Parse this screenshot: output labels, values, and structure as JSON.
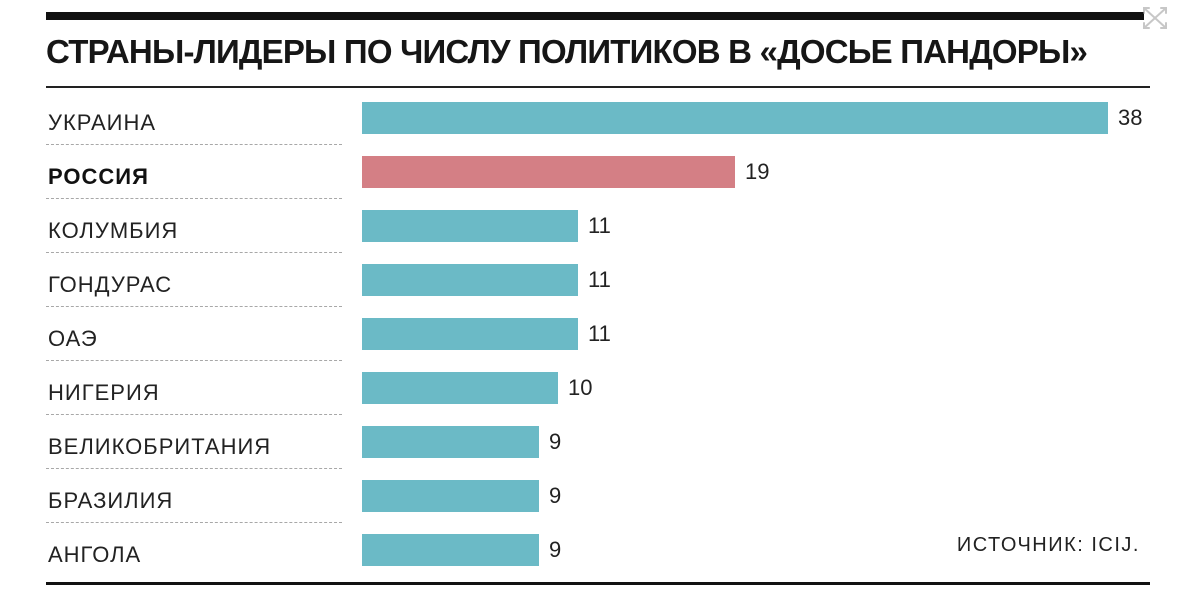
{
  "chart_data": {
    "type": "bar",
    "orientation": "horizontal",
    "title": "СТРАНЫ-ЛИДЕРЫ ПО ЧИСЛУ ПОЛИТИКОВ В «ДОСЬЕ ПАНДОРЫ»",
    "categories": [
      "УКРАИНА",
      "РОССИЯ",
      "КОЛУМБИЯ",
      "ГОНДУРАС",
      "ОАЭ",
      "НИГЕРИЯ",
      "ВЕЛИКОБРИТАНИЯ",
      "БРАЗИЛИЯ",
      "АНГОЛА"
    ],
    "values": [
      38,
      19,
      11,
      11,
      11,
      10,
      9,
      9,
      9
    ],
    "highlight_category": "РОССИЯ",
    "xlim": [
      0,
      38
    ],
    "grid": false,
    "data_labels": true,
    "source": "ИСТОЧНИК: ICIJ."
  },
  "colors": {
    "bar": "#6bbac6",
    "highlight_bar": "#d47f85",
    "rules": "#111111"
  },
  "icons": {
    "corner": "expand-icon"
  }
}
